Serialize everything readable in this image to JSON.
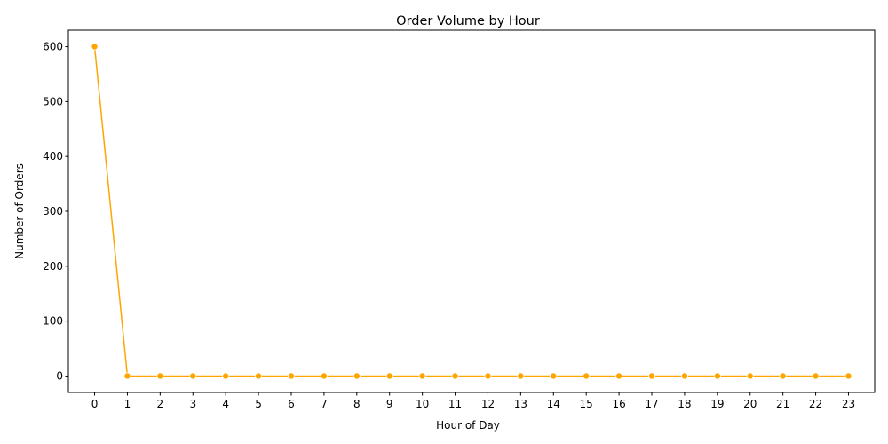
{
  "chart_data": {
    "type": "line",
    "title": "Order Volume by Hour",
    "xlabel": "Hour of Day",
    "ylabel": "Number of Orders",
    "x": [
      0,
      1,
      2,
      3,
      4,
      5,
      6,
      7,
      8,
      9,
      10,
      11,
      12,
      13,
      14,
      15,
      16,
      17,
      18,
      19,
      20,
      21,
      22,
      23
    ],
    "series": [
      {
        "values": [
          600,
          0,
          0,
          0,
          0,
          0,
          0,
          0,
          0,
          0,
          0,
          0,
          0,
          0,
          0,
          0,
          0,
          0,
          0,
          0,
          0,
          0,
          0,
          0
        ],
        "color": "#FFA500",
        "marker": "circle"
      }
    ],
    "xticks": [
      0,
      1,
      2,
      3,
      4,
      5,
      6,
      7,
      8,
      9,
      10,
      11,
      12,
      13,
      14,
      15,
      16,
      17,
      18,
      19,
      20,
      21,
      22,
      23
    ],
    "yticks": [
      0,
      100,
      200,
      300,
      400,
      500,
      600
    ],
    "xlim": [
      -0.8,
      23.8
    ],
    "ylim": [
      -30,
      630
    ],
    "grid": false,
    "legend": "none"
  }
}
